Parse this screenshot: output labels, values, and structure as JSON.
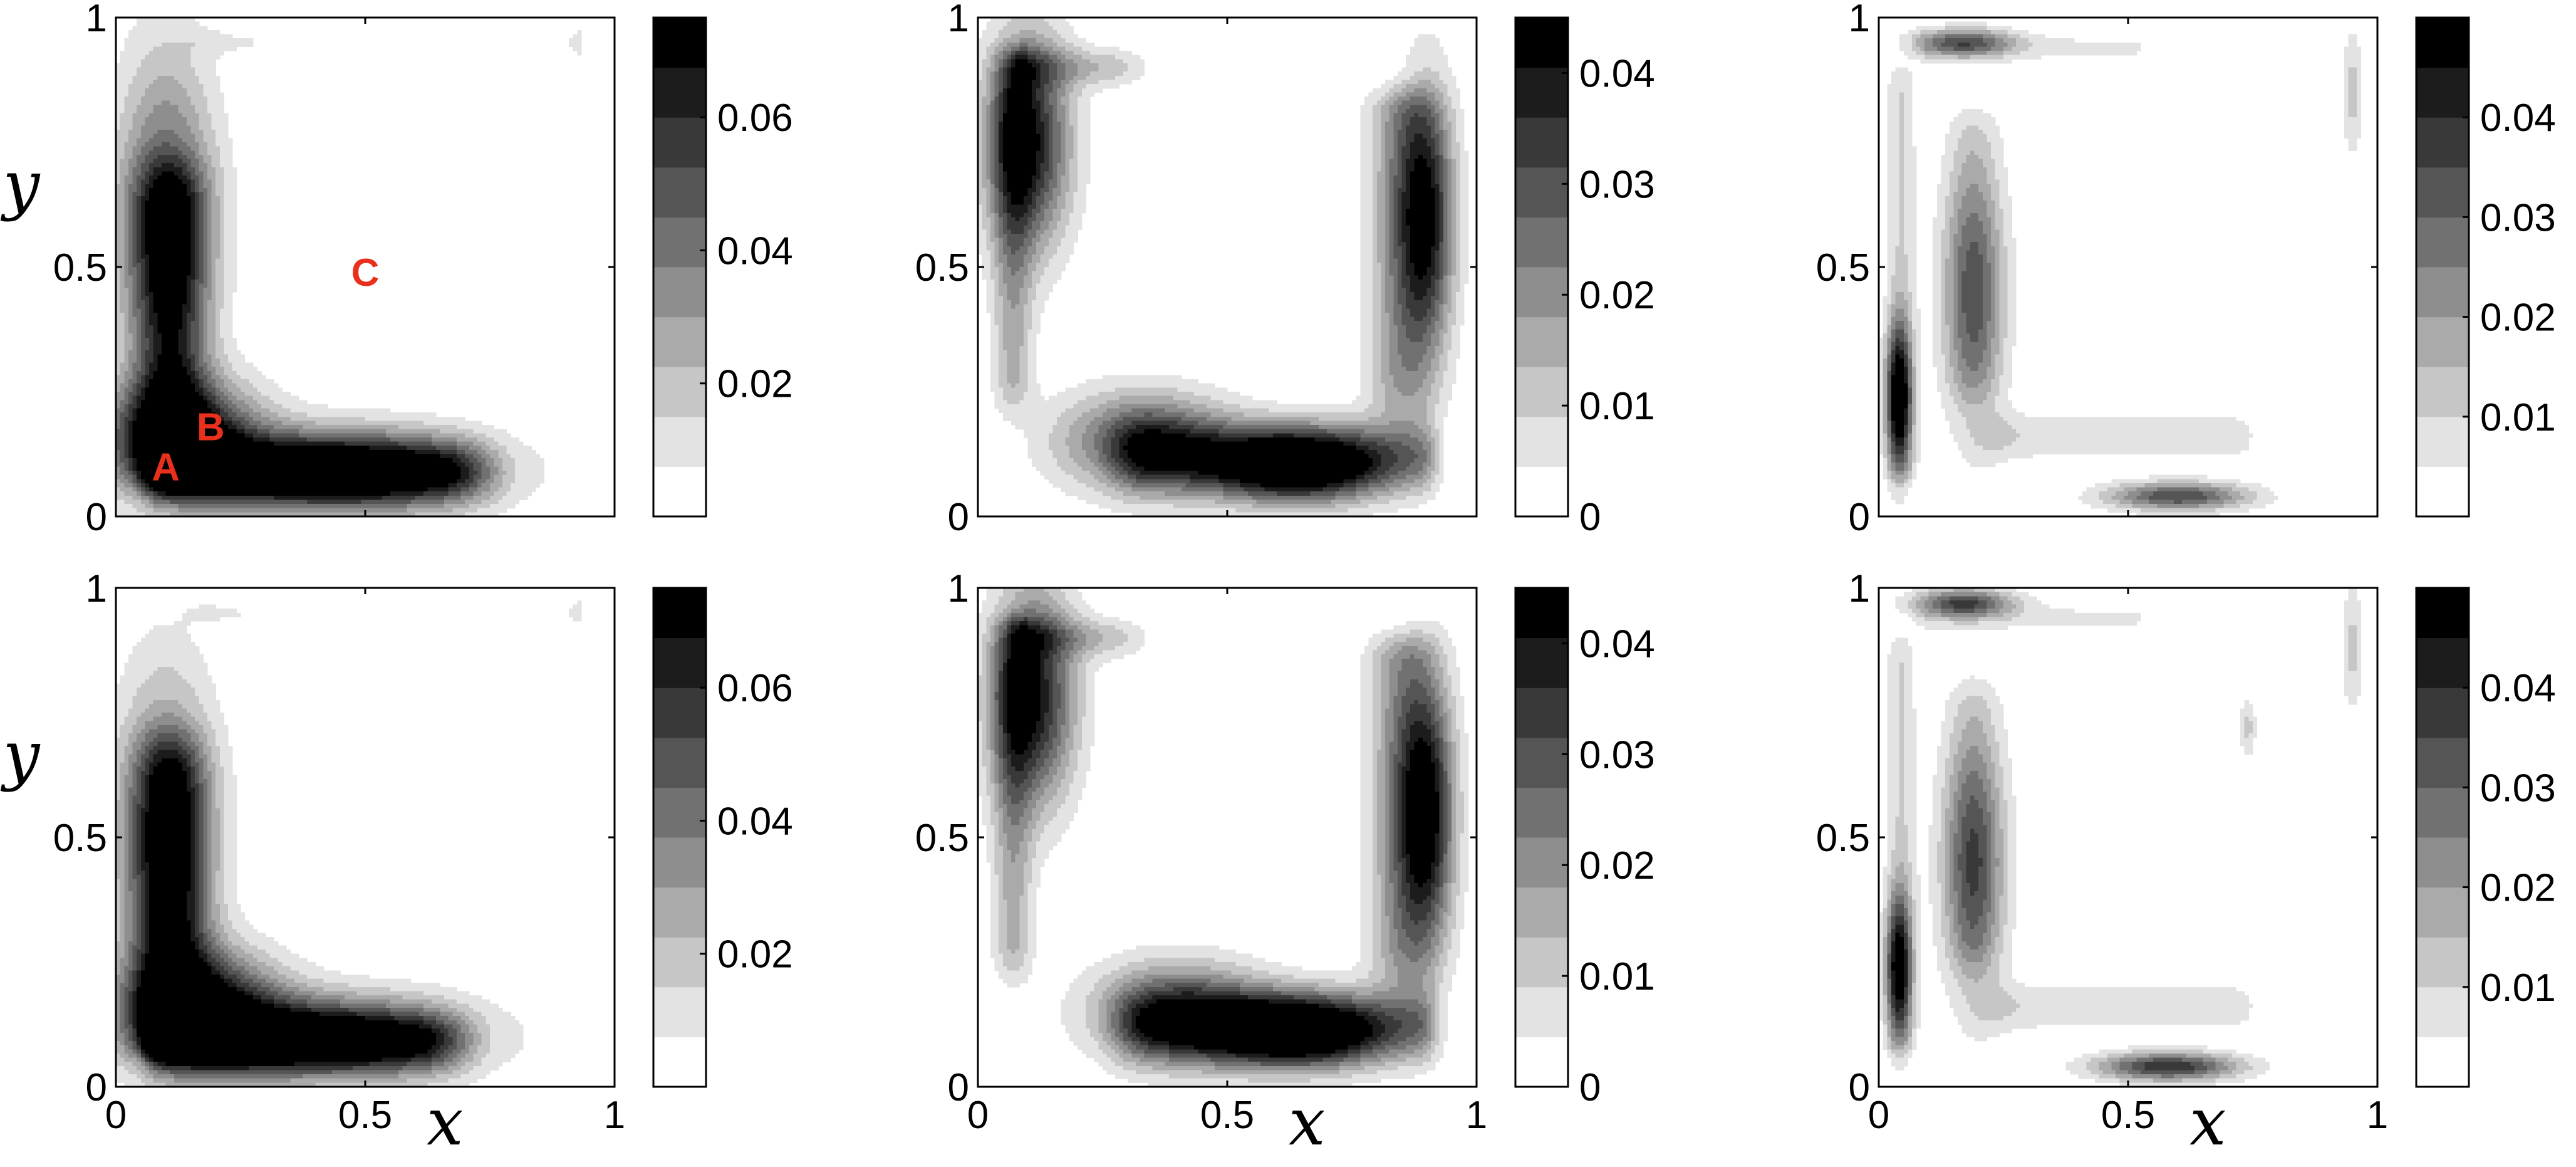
{
  "chart_data": [
    {
      "type": "heatmap",
      "row": 0,
      "col": 0,
      "xlim": [
        0,
        1
      ],
      "ylim": [
        0,
        1
      ],
      "x_ticks": [
        "0",
        "0.5",
        "1"
      ],
      "y_ticks": [
        "0",
        "0.5",
        "1"
      ],
      "xlabel": "",
      "ylabel": "y",
      "colorbar": {
        "min": 0,
        "max": 0.075,
        "levels": 10,
        "tick_values": [
          0.02,
          0.04,
          0.06
        ],
        "tick_labels": [
          "0.02",
          "0.04",
          "0.06"
        ]
      },
      "annotations": [
        {
          "label": "A",
          "x": 0.1,
          "y": 0.1
        },
        {
          "label": "B",
          "x": 0.19,
          "y": 0.18
        },
        {
          "label": "C",
          "x": 0.5,
          "y": 0.49
        }
      ],
      "field": {
        "mode": "main",
        "v1": [
          0.13,
          0.16,
          0.071
        ],
        "v2": [
          0.45,
          0.09,
          0.062
        ],
        "v3": [
          0.1,
          0.6,
          0.052
        ],
        "ext": 0.8,
        "ridgeLo": 0.03,
        "ridgeHi": 0.5,
        "ridgeMax": 0.007
      }
    },
    {
      "type": "heatmap",
      "row": 0,
      "col": 1,
      "xlim": [
        0,
        1
      ],
      "ylim": [
        0,
        1
      ],
      "x_ticks": [
        "0",
        "0.5",
        "1"
      ],
      "y_ticks": [
        "0",
        "0.5",
        "1"
      ],
      "xlabel": "",
      "ylabel": "",
      "colorbar": {
        "min": 0,
        "max": 0.045,
        "levels": 10,
        "tick_values": [
          0,
          0.01,
          0.02,
          0.03,
          0.04
        ],
        "tick_labels": [
          "0",
          "0.01",
          "0.02",
          "0.03",
          "0.04"
        ]
      },
      "field": {
        "mode": "second",
        "u1": [
          0.64,
          0.1,
          0.046
        ],
        "u2": [
          0.33,
          0.15,
          0.03
        ],
        "u3": [
          0.9,
          0.6,
          0.036
        ],
        "u4": [
          0.1,
          0.75,
          0.04
        ],
        "top": 0.85,
        "side": 0.7
      }
    },
    {
      "type": "heatmap",
      "row": 0,
      "col": 2,
      "xlim": [
        0,
        1
      ],
      "ylim": [
        0,
        1
      ],
      "x_ticks": [
        "0",
        "0.5",
        "1"
      ],
      "y_ticks": [
        "0",
        "0.5",
        "1"
      ],
      "xlabel": "",
      "ylabel": "",
      "colorbar": {
        "min": 0,
        "max": 0.05,
        "levels": 10,
        "tick_values": [
          0.01,
          0.02,
          0.03,
          0.04
        ],
        "tick_labels": [
          "0.01",
          "0.02",
          "0.03",
          "0.04"
        ]
      },
      "field": {
        "mode": "third",
        "w1": [
          0.04,
          0.24,
          0.05
        ],
        "w2": [
          0.17,
          0.95,
          0.03
        ],
        "w3": [
          0.6,
          0.04,
          0.035
        ],
        "w4": [
          0.19,
          0.45,
          0.027
        ],
        "w5": [
          0.95,
          0.85,
          0.012
        ],
        "spike": 0
      }
    },
    {
      "type": "heatmap",
      "row": 1,
      "col": 0,
      "xlim": [
        0,
        1
      ],
      "ylim": [
        0,
        1
      ],
      "x_ticks": [
        "0",
        "0.5",
        "1"
      ],
      "y_ticks": [
        "0",
        "0.5",
        "1"
      ],
      "xlabel": "x",
      "ylabel": "y",
      "colorbar": {
        "min": 0,
        "max": 0.075,
        "levels": 10,
        "tick_values": [
          0.02,
          0.04,
          0.06
        ],
        "tick_labels": [
          "0.02",
          "0.04",
          "0.06"
        ]
      },
      "field": {
        "mode": "main",
        "v1": [
          0.17,
          0.16,
          0.069
        ],
        "v2": [
          0.42,
          0.1,
          0.056
        ],
        "v3": [
          0.1,
          0.5,
          0.05
        ],
        "ext": 0.75,
        "ridgeLo": 0.03,
        "ridgeHi": 0.8,
        "ridgeMax": 0.007
      }
    },
    {
      "type": "heatmap",
      "row": 1,
      "col": 1,
      "xlim": [
        0,
        1
      ],
      "ylim": [
        0,
        1
      ],
      "x_ticks": [
        "0",
        "0.5",
        "1"
      ],
      "y_ticks": [
        "0",
        "0.5",
        "1"
      ],
      "xlabel": "x",
      "ylabel": "",
      "colorbar": {
        "min": 0,
        "max": 0.045,
        "levels": 10,
        "tick_values": [
          0,
          0.01,
          0.02,
          0.03,
          0.04
        ],
        "tick_labels": [
          "0",
          "0.01",
          "0.02",
          "0.03",
          "0.04"
        ]
      },
      "field": {
        "mode": "second",
        "u1": [
          0.64,
          0.11,
          0.046
        ],
        "u2": [
          0.4,
          0.15,
          0.03
        ],
        "u3": [
          0.9,
          0.55,
          0.04
        ],
        "u4": [
          0.11,
          0.78,
          0.04
        ],
        "top": 0.9,
        "side": 0.7
      }
    },
    {
      "type": "heatmap",
      "row": 1,
      "col": 2,
      "xlim": [
        0,
        1
      ],
      "ylim": [
        0,
        1
      ],
      "x_ticks": [
        "0",
        "0.5",
        "1"
      ],
      "y_ticks": [
        "0",
        "0.5",
        "1"
      ],
      "xlabel": "x",
      "ylabel": "",
      "colorbar": {
        "min": 0,
        "max": 0.05,
        "levels": 10,
        "tick_values": [
          0.01,
          0.02,
          0.03,
          0.04
        ],
        "tick_labels": [
          "0.01",
          "0.02",
          "0.03",
          "0.04"
        ]
      },
      "field": {
        "mode": "third",
        "w1": [
          0.04,
          0.24,
          0.045
        ],
        "w2": [
          0.17,
          0.97,
          0.035
        ],
        "w3": [
          0.58,
          0.04,
          0.04
        ],
        "w4": [
          0.19,
          0.45,
          0.03
        ],
        "w5": [
          0.95,
          0.88,
          0.012
        ],
        "spike": 0.012
      }
    }
  ],
  "colormap": {
    "low": "#ffffff",
    "high": "#000000",
    "style": "gray, filled contours"
  },
  "annotation_color": "#e8301c"
}
